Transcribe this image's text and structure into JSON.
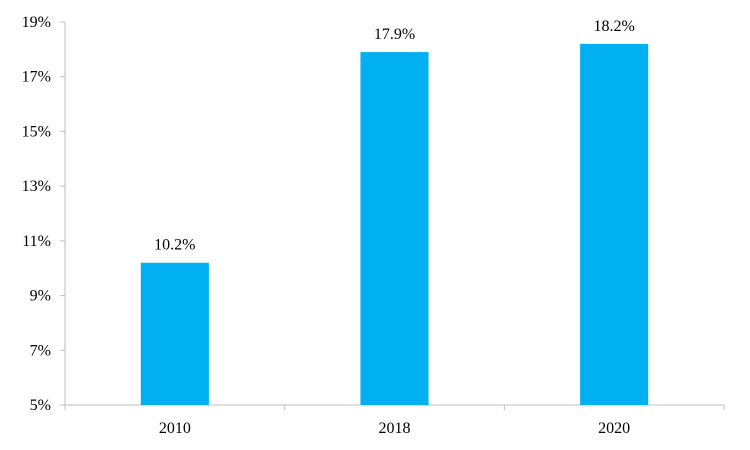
{
  "chart_data": {
    "type": "bar",
    "categories": [
      "2010",
      "2018",
      "2020"
    ],
    "values": [
      10.2,
      17.9,
      18.2
    ],
    "data_labels": [
      "10.2%",
      "17.9%",
      "18.2%"
    ],
    "ylim": [
      5,
      19
    ],
    "yticks": [
      5,
      7,
      9,
      11,
      13,
      15,
      17,
      19
    ],
    "ytick_labels": [
      "5%",
      "7%",
      "9%",
      "11%",
      "13%",
      "15%",
      "17%",
      "19%"
    ],
    "grid": false,
    "legend": "none",
    "bar_color": "#00b0f0"
  }
}
